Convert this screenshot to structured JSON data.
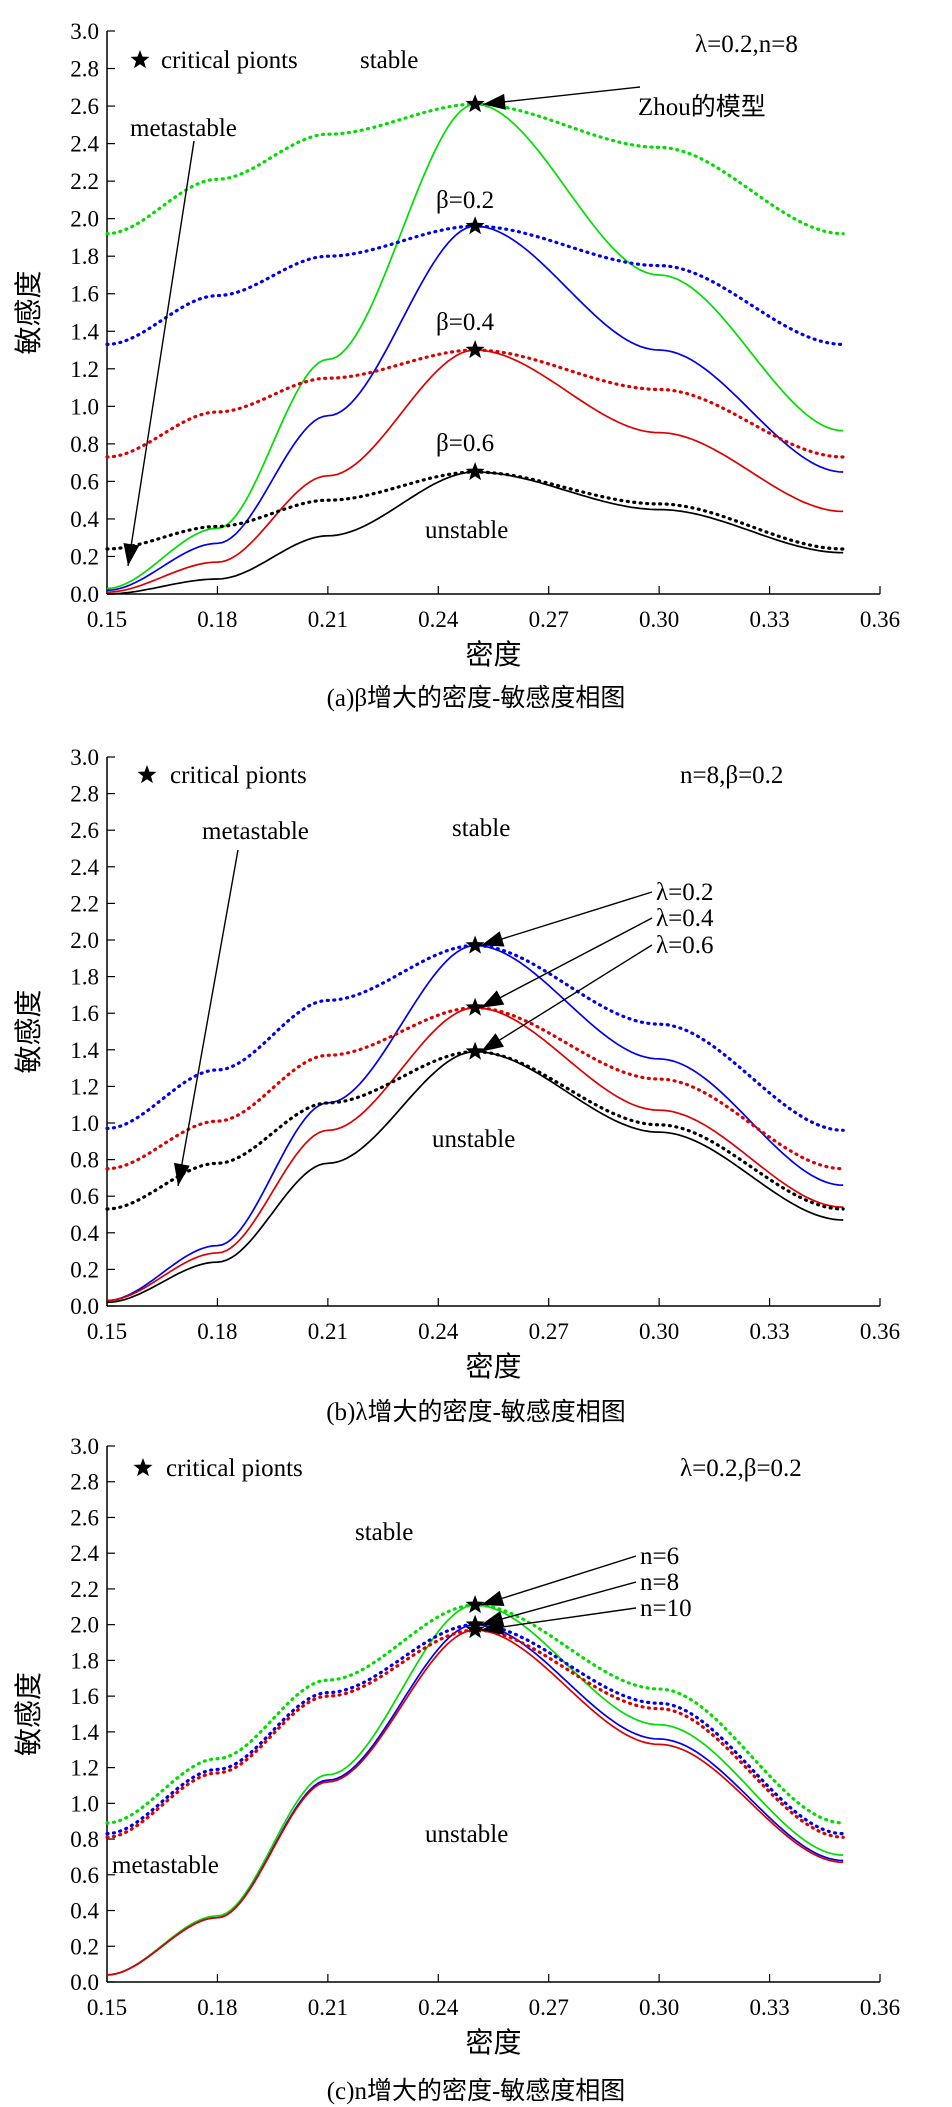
{
  "chart_data": [
    {
      "type": "line",
      "panel": "a",
      "caption": "(a)β增大的密度-敏感度相图",
      "xlabel": "密度",
      "ylabel": "敏感度",
      "xlim": [
        0.15,
        0.36
      ],
      "ylim": [
        0,
        3.0
      ],
      "xticks": [
        "0.15",
        "0.18",
        "0.21",
        "0.24",
        "0.27",
        "0.30",
        "0.33",
        "0.36"
      ],
      "yticks": [
        "0.0",
        "0.2",
        "0.4",
        "0.6",
        "0.8",
        "1.0",
        "1.2",
        "1.4",
        "1.6",
        "1.8",
        "2.0",
        "2.2",
        "2.4",
        "2.6",
        "2.8",
        "3.0"
      ],
      "params_label": "λ=0.2,n=8",
      "critical_legend": "critical pionts",
      "region_labels": {
        "stable": "stable",
        "metastable": "metastable",
        "unstable": "unstable"
      },
      "zhou_label": "Zhou的模型",
      "series_labels": [
        "β=0.2",
        "β=0.4",
        "β=0.6"
      ],
      "series": [
        {
          "color": "#00dd00",
          "style": "solid",
          "x": [
            0.15,
            0.18,
            0.21,
            0.25,
            0.3,
            0.35
          ],
          "y": [
            0.03,
            0.35,
            1.25,
            2.61,
            1.7,
            0.87
          ]
        },
        {
          "color": "#00dd00",
          "style": "dotted",
          "x": [
            0.15,
            0.18,
            0.21,
            0.25,
            0.3,
            0.35
          ],
          "y": [
            1.92,
            2.21,
            2.45,
            2.61,
            2.38,
            1.92
          ]
        },
        {
          "color": "#0000ee",
          "style": "solid",
          "x": [
            0.15,
            0.18,
            0.21,
            0.25,
            0.3,
            0.35
          ],
          "y": [
            0.02,
            0.27,
            0.95,
            1.96,
            1.3,
            0.65
          ]
        },
        {
          "color": "#0000ee",
          "style": "dotted",
          "x": [
            0.15,
            0.18,
            0.21,
            0.25,
            0.3,
            0.35
          ],
          "y": [
            1.33,
            1.59,
            1.8,
            1.96,
            1.75,
            1.33
          ]
        },
        {
          "color": "#dd0000",
          "style": "solid",
          "x": [
            0.15,
            0.18,
            0.21,
            0.25,
            0.3,
            0.35
          ],
          "y": [
            0.01,
            0.17,
            0.63,
            1.3,
            0.86,
            0.44
          ]
        },
        {
          "color": "#dd0000",
          "style": "dotted",
          "x": [
            0.15,
            0.18,
            0.21,
            0.25,
            0.3,
            0.35
          ],
          "y": [
            0.73,
            0.97,
            1.15,
            1.3,
            1.09,
            0.73
          ]
        },
        {
          "color": "#000000",
          "style": "solid",
          "x": [
            0.15,
            0.18,
            0.21,
            0.25,
            0.3,
            0.35
          ],
          "y": [
            0.0,
            0.08,
            0.31,
            0.65,
            0.45,
            0.22
          ]
        },
        {
          "color": "#000000",
          "style": "dotted",
          "x": [
            0.15,
            0.18,
            0.21,
            0.25,
            0.3,
            0.35
          ],
          "y": [
            0.24,
            0.36,
            0.5,
            0.65,
            0.48,
            0.24
          ]
        }
      ],
      "critical_points": [
        [
          0.25,
          2.61
        ],
        [
          0.25,
          1.96
        ],
        [
          0.25,
          1.3
        ],
        [
          0.25,
          0.65
        ]
      ]
    },
    {
      "type": "line",
      "panel": "b",
      "caption": "(b)λ增大的密度-敏感度相图",
      "xlabel": "密度",
      "ylabel": "敏感度",
      "xlim": [
        0.15,
        0.36
      ],
      "ylim": [
        0,
        3.0
      ],
      "xticks": [
        "0.15",
        "0.18",
        "0.21",
        "0.24",
        "0.27",
        "0.30",
        "0.33",
        "0.36"
      ],
      "yticks": [
        "0.0",
        "0.2",
        "0.4",
        "0.6",
        "0.8",
        "1.0",
        "1.2",
        "1.4",
        "1.6",
        "1.8",
        "2.0",
        "2.2",
        "2.4",
        "2.6",
        "2.8",
        "3.0"
      ],
      "params_label": "n=8,β=0.2",
      "critical_legend": "critical pionts",
      "region_labels": {
        "stable": "stable",
        "metastable": "metastable",
        "unstable": "unstable"
      },
      "series_labels": [
        "λ=0.2",
        "λ=0.4",
        "λ=0.6"
      ],
      "series": [
        {
          "color": "#0000ee",
          "style": "solid",
          "x": [
            0.15,
            0.18,
            0.21,
            0.25,
            0.3,
            0.35
          ],
          "y": [
            0.03,
            0.33,
            1.11,
            1.97,
            1.35,
            0.66
          ]
        },
        {
          "color": "#0000ee",
          "style": "dotted",
          "x": [
            0.15,
            0.18,
            0.21,
            0.25,
            0.3,
            0.35
          ],
          "y": [
            0.97,
            1.29,
            1.67,
            1.97,
            1.54,
            0.96
          ]
        },
        {
          "color": "#dd0000",
          "style": "solid",
          "x": [
            0.15,
            0.18,
            0.21,
            0.25,
            0.3,
            0.35
          ],
          "y": [
            0.03,
            0.29,
            0.96,
            1.63,
            1.07,
            0.54
          ]
        },
        {
          "color": "#dd0000",
          "style": "dotted",
          "x": [
            0.15,
            0.18,
            0.21,
            0.25,
            0.3,
            0.35
          ],
          "y": [
            0.75,
            1.01,
            1.37,
            1.63,
            1.24,
            0.75
          ]
        },
        {
          "color": "#000000",
          "style": "solid",
          "x": [
            0.15,
            0.18,
            0.21,
            0.25,
            0.3,
            0.35
          ],
          "y": [
            0.02,
            0.24,
            0.78,
            1.39,
            0.95,
            0.47
          ]
        },
        {
          "color": "#000000",
          "style": "dotted",
          "x": [
            0.15,
            0.18,
            0.21,
            0.25,
            0.3,
            0.35
          ],
          "y": [
            0.53,
            0.78,
            1.11,
            1.39,
            0.99,
            0.53
          ]
        }
      ],
      "critical_points": [
        [
          0.25,
          1.97
        ],
        [
          0.25,
          1.63
        ],
        [
          0.25,
          1.39
        ]
      ]
    },
    {
      "type": "line",
      "panel": "c",
      "caption": "(c)n增大的密度-敏感度相图",
      "xlabel": "密度",
      "ylabel": "敏感度",
      "xlim": [
        0.15,
        0.36
      ],
      "ylim": [
        0,
        3.0
      ],
      "xticks": [
        "0.15",
        "0.18",
        "0.21",
        "0.24",
        "0.27",
        "0.30",
        "0.33",
        "0.36"
      ],
      "yticks": [
        "0.0",
        "0.2",
        "0.4",
        "0.6",
        "0.8",
        "1.0",
        "1.2",
        "1.4",
        "1.6",
        "1.8",
        "2.0",
        "2.2",
        "2.4",
        "2.6",
        "2.8",
        "3.0"
      ],
      "params_label": "λ=0.2,β=0.2",
      "critical_legend": "critical pionts",
      "region_labels": {
        "stable": "stable",
        "metastable": "metastable",
        "unstable": "unstable"
      },
      "series_labels": [
        "n=6",
        "n=8",
        "n=10"
      ],
      "series": [
        {
          "color": "#00dd00",
          "style": "solid",
          "x": [
            0.15,
            0.18,
            0.21,
            0.25,
            0.3,
            0.35
          ],
          "y": [
            0.04,
            0.37,
            1.16,
            2.11,
            1.44,
            0.71
          ]
        },
        {
          "color": "#00dd00",
          "style": "dotted",
          "x": [
            0.15,
            0.18,
            0.21,
            0.25,
            0.3,
            0.35
          ],
          "y": [
            0.89,
            1.25,
            1.69,
            2.11,
            1.64,
            0.89
          ]
        },
        {
          "color": "#0000ee",
          "style": "solid",
          "x": [
            0.15,
            0.18,
            0.21,
            0.25,
            0.3,
            0.35
          ],
          "y": [
            0.04,
            0.36,
            1.13,
            2.0,
            1.36,
            0.68
          ]
        },
        {
          "color": "#0000ee",
          "style": "dotted",
          "x": [
            0.15,
            0.18,
            0.21,
            0.25,
            0.3,
            0.35
          ],
          "y": [
            0.83,
            1.19,
            1.62,
            2.0,
            1.56,
            0.83
          ]
        },
        {
          "color": "#dd0000",
          "style": "solid",
          "x": [
            0.15,
            0.18,
            0.21,
            0.25,
            0.3,
            0.35
          ],
          "y": [
            0.04,
            0.36,
            1.12,
            1.97,
            1.33,
            0.67
          ]
        },
        {
          "color": "#dd0000",
          "style": "dotted",
          "x": [
            0.15,
            0.18,
            0.21,
            0.25,
            0.3,
            0.35
          ],
          "y": [
            0.81,
            1.17,
            1.6,
            1.97,
            1.53,
            0.81
          ]
        }
      ],
      "critical_points": [
        [
          0.25,
          2.11
        ],
        [
          0.25,
          2.0
        ],
        [
          0.25,
          1.97
        ]
      ]
    }
  ]
}
